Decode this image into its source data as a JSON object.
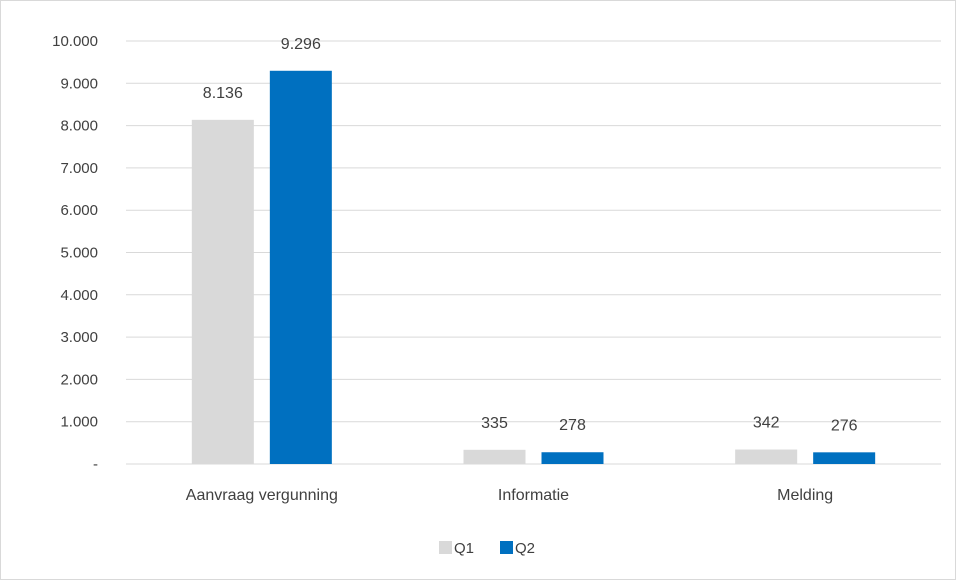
{
  "chart_data": {
    "type": "bar",
    "categories": [
      "Aanvraag vergunning",
      "Informatie",
      "Melding"
    ],
    "series": [
      {
        "name": "Q1",
        "color": "#d9d9d9",
        "values": [
          8136,
          335,
          342
        ],
        "labels": [
          "8.136",
          "335",
          "342"
        ]
      },
      {
        "name": "Q2",
        "color": "#0070c0",
        "values": [
          9296,
          278,
          276
        ],
        "labels": [
          "9.296",
          "278",
          "276"
        ]
      }
    ],
    "ylim": [
      0,
      10000
    ],
    "ytick_values": [
      0,
      1000,
      2000,
      3000,
      4000,
      5000,
      6000,
      7000,
      8000,
      9000,
      10000
    ],
    "ytick_labels": [
      "-",
      "1.000",
      "2.000",
      "3.000",
      "4.000",
      "5.000",
      "6.000",
      "7.000",
      "8.000",
      "9.000",
      "10.000"
    ],
    "grid": true,
    "gridline_color": "#d9d9d9",
    "legend_position": "bottom",
    "xlabel": "",
    "ylabel": "",
    "title": ""
  }
}
